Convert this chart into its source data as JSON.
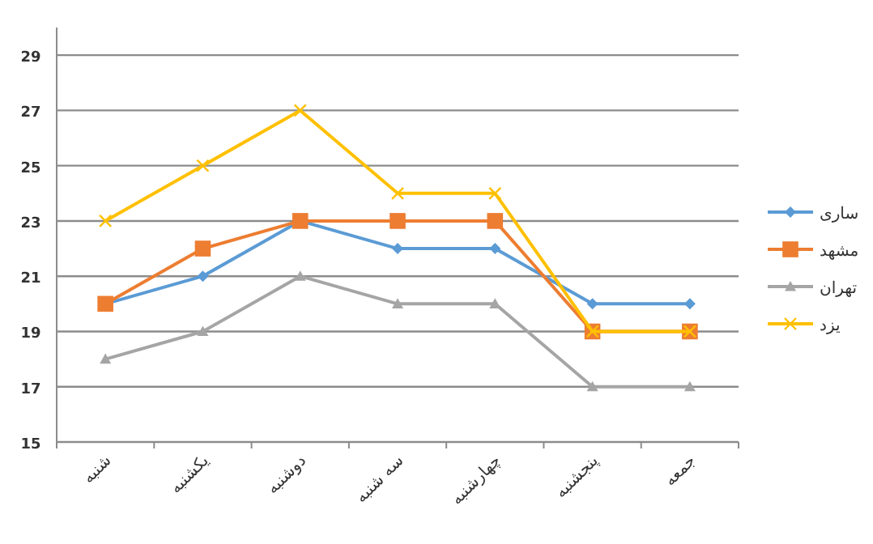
{
  "chart_data": {
    "type": "line",
    "categories": [
      "شنبه",
      "یکشنبه",
      "دوشنبه",
      "سه شنبه",
      "چهارشنبه",
      "پنجشنبه",
      "جمعه"
    ],
    "series": [
      {
        "name": "ساری",
        "color": "#5b9bd5",
        "marker": "diamond",
        "values": [
          20,
          21,
          23,
          22,
          22,
          20,
          20
        ]
      },
      {
        "name": "مشهد",
        "color": "#ed7d31",
        "marker": "square",
        "values": [
          20,
          22,
          23,
          23,
          23,
          19,
          19
        ]
      },
      {
        "name": "تهران",
        "color": "#a5a5a5",
        "marker": "triangle",
        "values": [
          18,
          19,
          21,
          20,
          20,
          17,
          17
        ]
      },
      {
        "name": "یزد",
        "color": "#ffc000",
        "marker": "cross",
        "values": [
          23,
          25,
          27,
          24,
          24,
          19,
          19
        ]
      }
    ],
    "ylim": [
      15,
      30
    ],
    "yticks": [
      15,
      17,
      19,
      21,
      23,
      25,
      27,
      29
    ],
    "grid": "y",
    "legend": "right"
  }
}
